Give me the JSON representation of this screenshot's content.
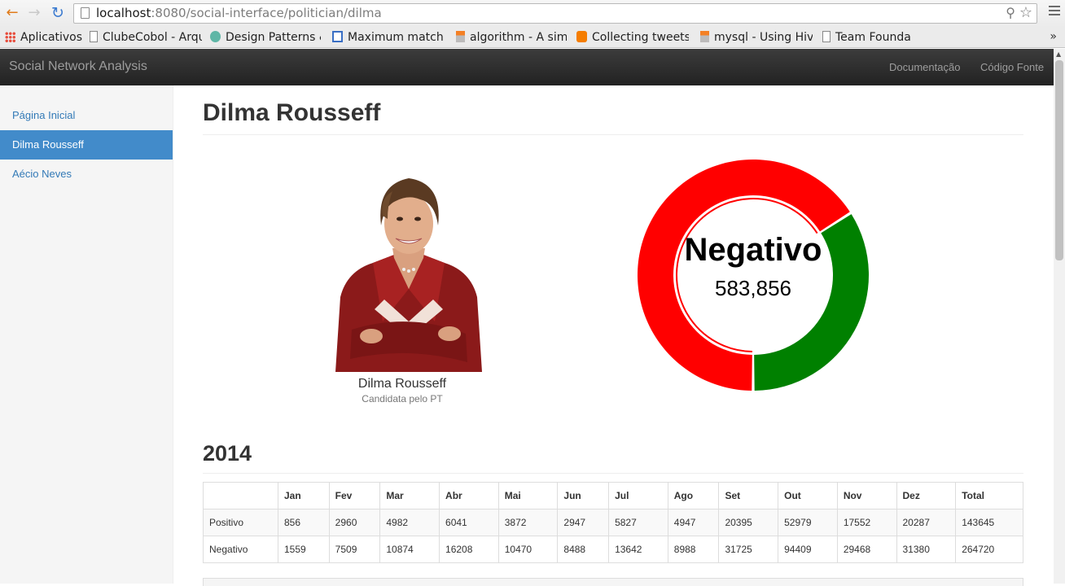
{
  "browser": {
    "url_host": "localhost",
    "url_rest": ":8080/social-interface/politician/dilma",
    "bookmarks": [
      {
        "label": "Aplicativos",
        "icon": "apps-grid-icon"
      },
      {
        "label": "ClubeCobol - Arqui",
        "icon": "page-icon"
      },
      {
        "label": "Design Patterns &",
        "icon": "site-icon"
      },
      {
        "label": "Maximum matchin",
        "icon": "site-icon"
      },
      {
        "label": "algorithm - A simpl",
        "icon": "stackoverflow-icon"
      },
      {
        "label": "Collecting tweets",
        "icon": "blogger-icon"
      },
      {
        "label": "mysql - Using Hive",
        "icon": "stackoverflow-icon"
      },
      {
        "label": "Team Foundation \\",
        "icon": "page-icon"
      }
    ],
    "more": "»"
  },
  "navbar": {
    "brand": "Social Network Analysis",
    "links": [
      "Documentação",
      "Código Fonte"
    ]
  },
  "sidebar": {
    "items": [
      {
        "label": "Página Inicial",
        "active": false
      },
      {
        "label": "Dilma Rousseff",
        "active": true
      },
      {
        "label": "Aécio Neves",
        "active": false
      }
    ]
  },
  "main": {
    "title": "Dilma Rousseff",
    "profile": {
      "name": "Dilma Rousseff",
      "subtitle": "Candidata pelo PT"
    },
    "donut": {
      "label": "Negativo",
      "value": "583,856",
      "segments": [
        {
          "name": "Negativo",
          "value": 583856,
          "color": "#ff0000"
        },
        {
          "name": "Positivo",
          "value": 301208,
          "color": "#008000"
        }
      ]
    },
    "year": "2014",
    "table": {
      "headers": [
        "",
        "Jan",
        "Fev",
        "Mar",
        "Abr",
        "Mai",
        "Jun",
        "Jul",
        "Ago",
        "Set",
        "Out",
        "Nov",
        "Dez",
        "Total"
      ],
      "rows": [
        [
          "Positivo",
          "856",
          "2960",
          "4982",
          "6041",
          "3872",
          "2947",
          "5827",
          "4947",
          "20395",
          "52979",
          "17552",
          "20287",
          "143645"
        ],
        [
          "Negativo",
          "1559",
          "7509",
          "10874",
          "16208",
          "10470",
          "8488",
          "13642",
          "8988",
          "31725",
          "94409",
          "29468",
          "31380",
          "264720"
        ]
      ]
    }
  }
}
